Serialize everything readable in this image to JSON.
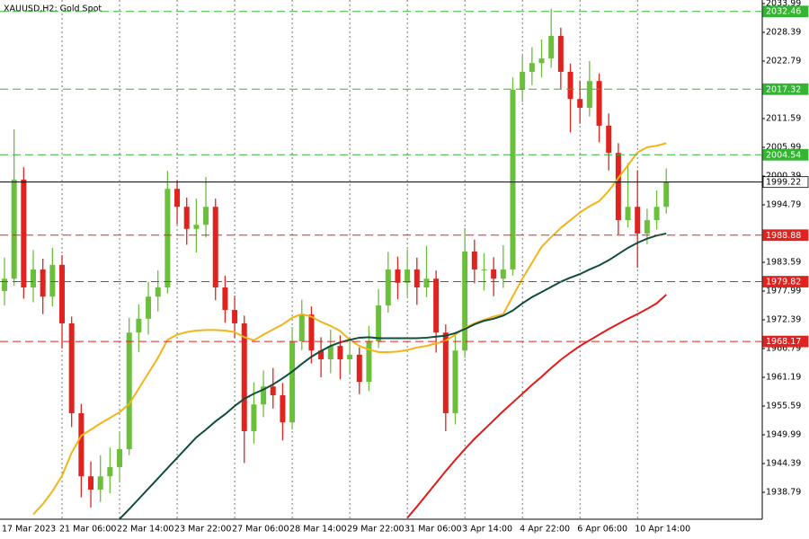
{
  "chart_data": {
    "type": "candlestick",
    "title": "XAUUSD,H2: Gold Spot",
    "up_color": "#6cbf3c",
    "down_color": "#e0231f",
    "categories": [
      "17 Mar 2023",
      null,
      null,
      null,
      null,
      null,
      "21 Mar 06:00",
      null,
      null,
      null,
      null,
      null,
      "22 Mar 14:00",
      null,
      null,
      null,
      null,
      null,
      "23 Mar 22:00",
      null,
      null,
      null,
      null,
      null,
      "27 Mar 06:00",
      null,
      null,
      null,
      null,
      null,
      "28 Mar 14:00",
      null,
      null,
      null,
      null,
      null,
      "29 Mar 22:00",
      null,
      null,
      null,
      null,
      null,
      "31 Mar 06:00",
      null,
      null,
      null,
      null,
      null,
      "3 Apr 14:00",
      null,
      null,
      null,
      null,
      null,
      "4 Apr 22:00",
      null,
      null,
      null,
      null,
      null,
      "6 Apr 06:00",
      null,
      null,
      null,
      null,
      null,
      "10 Apr 14:00",
      null,
      null,
      null
    ],
    "ohlc": [
      [
        1978.0,
        1984.5,
        1975.2,
        1980.4
      ],
      [
        1980.4,
        2009.5,
        1979.0,
        1999.7
      ],
      [
        1999.7,
        2002.1,
        1976.5,
        1978.7
      ],
      [
        1978.7,
        1986.0,
        1975.8,
        1982.2
      ],
      [
        1982.2,
        1984.3,
        1973.5,
        1976.9
      ],
      [
        1976.9,
        1986.4,
        1975.0,
        1983.1
      ],
      [
        1983.1,
        1985.0,
        1966.8,
        1971.7
      ],
      [
        1971.7,
        1973.0,
        1951.5,
        1954.2
      ],
      [
        1954.2,
        1956.0,
        1937.8,
        1941.9
      ],
      [
        1941.9,
        1944.8,
        1935.8,
        1939.3
      ],
      [
        1939.3,
        1946.0,
        1936.9,
        1941.9
      ],
      [
        1941.9,
        1947.5,
        1938.6,
        1943.7
      ],
      [
        1943.7,
        1950.3,
        1941.0,
        1947.2
      ],
      [
        1947.2,
        1972.8,
        1946.0,
        1969.9
      ],
      [
        1969.9,
        1975.4,
        1966.1,
        1972.6
      ],
      [
        1972.6,
        1979.8,
        1969.5,
        1976.9
      ],
      [
        1976.9,
        1982.0,
        1974.0,
        1978.7
      ],
      [
        1978.7,
        2001.4,
        1977.5,
        1997.9
      ],
      [
        1997.9,
        1999.6,
        1991.0,
        1994.4
      ],
      [
        1994.4,
        1996.2,
        1987.0,
        1990.1
      ],
      [
        1990.1,
        1996.0,
        1985.5,
        1990.9
      ],
      [
        1990.9,
        2000.2,
        1988.4,
        1994.4
      ],
      [
        1994.4,
        1996.0,
        1976.2,
        1978.7
      ],
      [
        1978.7,
        1981.0,
        1971.8,
        1974.3
      ],
      [
        1974.3,
        1977.1,
        1968.9,
        1971.7
      ],
      [
        1971.7,
        1973.2,
        1944.5,
        1950.7
      ],
      [
        1950.7,
        1960.2,
        1948.3,
        1955.9
      ],
      [
        1955.9,
        1962.5,
        1953.4,
        1959.4
      ],
      [
        1959.4,
        1963.0,
        1955.1,
        1957.7
      ],
      [
        1957.7,
        1960.1,
        1948.9,
        1952.4
      ],
      [
        1952.4,
        1971.0,
        1951.0,
        1968.2
      ],
      [
        1968.2,
        1976.3,
        1966.5,
        1973.4
      ],
      [
        1973.4,
        1975.0,
        1963.9,
        1966.4
      ],
      [
        1966.4,
        1969.0,
        1961.2,
        1964.7
      ],
      [
        1964.7,
        1970.5,
        1962.0,
        1967.3
      ],
      [
        1967.3,
        1969.4,
        1960.8,
        1964.7
      ],
      [
        1964.7,
        1968.9,
        1962.0,
        1965.6
      ],
      [
        1965.6,
        1967.0,
        1957.9,
        1960.3
      ],
      [
        1960.3,
        1971.2,
        1958.5,
        1968.2
      ],
      [
        1968.2,
        1978.4,
        1966.9,
        1975.2
      ],
      [
        1975.2,
        1985.6,
        1973.8,
        1982.2
      ],
      [
        1982.2,
        1984.7,
        1976.4,
        1979.6
      ],
      [
        1979.6,
        1986.1,
        1977.0,
        1982.2
      ],
      [
        1982.2,
        1984.5,
        1975.3,
        1978.7
      ],
      [
        1978.7,
        1986.8,
        1976.8,
        1980.4
      ],
      [
        1980.4,
        1982.0,
        1966.0,
        1969.9
      ],
      [
        1969.9,
        1971.5,
        1950.7,
        1954.2
      ],
      [
        1954.2,
        1969.8,
        1952.0,
        1966.4
      ],
      [
        1966.4,
        1990.3,
        1964.9,
        1985.7
      ],
      [
        1985.7,
        1988.0,
        1979.5,
        1982.2
      ],
      [
        1982.2,
        1985.4,
        1978.1,
        1982.2
      ],
      [
        1982.2,
        1984.6,
        1977.0,
        1980.4
      ],
      [
        1980.4,
        1986.9,
        1978.6,
        1982.2
      ],
      [
        1982.2,
        2019.6,
        1981.0,
        2017.2
      ],
      [
        2017.2,
        2024.0,
        2014.8,
        2020.7
      ],
      [
        2020.7,
        2025.5,
        2018.1,
        2022.4
      ],
      [
        2022.4,
        2027.0,
        2019.6,
        2023.3
      ],
      [
        2023.3,
        2033.0,
        2021.5,
        2027.7
      ],
      [
        2027.7,
        2029.3,
        2017.4,
        2020.7
      ],
      [
        2020.7,
        2022.3,
        2008.9,
        2015.4
      ],
      [
        2015.4,
        2019.0,
        2010.6,
        2013.7
      ],
      [
        2013.7,
        2022.8,
        2012.0,
        2018.9
      ],
      [
        2018.9,
        2020.4,
        2007.0,
        2010.2
      ],
      [
        2010.2,
        2012.6,
        2001.5,
        2004.9
      ],
      [
        2004.9,
        2006.8,
        1989.0,
        1991.8
      ],
      [
        1991.8,
        2002.9,
        1990.4,
        1994.4
      ],
      [
        1994.4,
        2001.5,
        1982.5,
        1989.2
      ],
      [
        1989.2,
        1994.0,
        1987.1,
        1991.8
      ],
      [
        1991.8,
        1997.6,
        1990.0,
        1994.4
      ],
      [
        1994.4,
        2001.9,
        1993.1,
        1999.22
      ]
    ],
    "lines": [
      {
        "color": "#f2b418",
        "values": [
          null,
          null,
          null,
          1934.5,
          1936.5,
          1939,
          1942,
          1946.5,
          1949.8,
          1951,
          1952.2,
          1953.3,
          1954.4,
          1956.0,
          1959,
          1962,
          1965,
          1968.5,
          1969.5,
          1970,
          1970.3,
          1970.4,
          1970.4,
          1970.3,
          1970.0,
          1969.0,
          1968.4,
          1969.5,
          1970.5,
          1971.5,
          1972.8,
          1973.5,
          1973.0,
          1972.0,
          1971.2,
          1970.2,
          1968.5,
          1967.3,
          1966.6,
          1966.1,
          1966.1,
          1966.2,
          1966.5,
          1967.0,
          1967.3,
          1967.8,
          1968.3,
          1969.5,
          1970.8,
          1971.7,
          1972.4,
          1973.0,
          1973.5,
          1977.0,
          1980.4,
          1983.5,
          1986.6,
          1988.5,
          1990.3,
          1991.8,
          1993.3,
          1994.5,
          1995.5,
          1997.5,
          2000.0,
          2002.5,
          2005.0,
          2006.0,
          2006.3,
          2006.8
        ]
      },
      {
        "color": "#0f4d3c",
        "values": [
          null,
          null,
          null,
          null,
          null,
          null,
          null,
          null,
          null,
          null,
          null,
          null,
          1933.6,
          1935.5,
          1937.5,
          1939.5,
          1941.5,
          1943.5,
          1945.5,
          1947.5,
          1949.5,
          1951.0,
          1952.6,
          1954.0,
          1955.6,
          1957.0,
          1958.0,
          1958.8,
          1959.8,
          1961.0,
          1962.3,
          1963.8,
          1965.2,
          1966.3,
          1967.3,
          1968.0,
          1968.5,
          1968.9,
          1969.0,
          1968.8,
          1968.8,
          1968.8,
          1968.8,
          1968.8,
          1968.9,
          1969.1,
          1969.3,
          1969.8,
          1970.6,
          1971.5,
          1972.2,
          1972.6,
          1973.2,
          1974.2,
          1975.6,
          1976.8,
          1977.8,
          1978.8,
          1979.8,
          1980.6,
          1981.3,
          1982.2,
          1983.0,
          1984.0,
          1985.2,
          1986.4,
          1987.4,
          1988.2,
          1988.8,
          1989.2
        ]
      },
      {
        "color": "#e01b1b",
        "values": [
          null,
          null,
          null,
          null,
          null,
          null,
          null,
          null,
          null,
          null,
          null,
          null,
          null,
          null,
          null,
          null,
          null,
          null,
          null,
          null,
          null,
          null,
          null,
          null,
          null,
          null,
          null,
          null,
          null,
          null,
          null,
          null,
          null,
          null,
          null,
          null,
          null,
          null,
          null,
          null,
          null,
          null,
          1933.8,
          1936.0,
          1938.3,
          1940.6,
          1942.9,
          1945.1,
          1947.2,
          1949.2,
          1951.0,
          1952.8,
          1954.6,
          1956.3,
          1958.0,
          1959.7,
          1961.3,
          1963.0,
          1964.6,
          1966.0,
          1967.3,
          1968.4,
          1969.5,
          1970.6,
          1971.6,
          1972.6,
          1973.5,
          1974.5,
          1975.6,
          1977.3
        ]
      }
    ],
    "levels": [
      {
        "value": 2032.46,
        "color": "#33b533",
        "dash": true,
        "box": "#33b533",
        "text_color": "#ffffff"
      },
      {
        "value": 2017.32,
        "color": "#33b533",
        "dash": true,
        "box": "#33b533",
        "text_color": "#ffffff"
      },
      {
        "value": 2004.54,
        "color": "#33b533",
        "dash": true,
        "box": "#33b533",
        "text_color": "#ffffff"
      },
      {
        "value": 1999.22,
        "color": "#000000",
        "dash": false,
        "box": "#ffffff",
        "text_color": "#000000"
      },
      {
        "value": 1988.88,
        "color": "#e0231f",
        "dash": true,
        "box": "#e0231f",
        "text_color": "#ffffff"
      },
      {
        "value": 1979.82,
        "color": "#e0231f",
        "dash": true,
        "box": "#e0231f",
        "text_color": "#ffffff"
      },
      {
        "value": 1968.17,
        "color": "#e0231f",
        "dash": true,
        "box": "#e0231f",
        "text_color": "#ffffff"
      }
    ],
    "ylim": [
      1933.54,
      2034.69
    ],
    "yticks": [
      2033.99,
      2028.39,
      2022.79,
      2011.59,
      2005.99,
      2000.39,
      1994.79,
      1983.59,
      1977.99,
      1972.39,
      1966.79,
      1961.19,
      1955.59,
      1949.99,
      1944.39,
      1938.79
    ],
    "grid": true
  }
}
